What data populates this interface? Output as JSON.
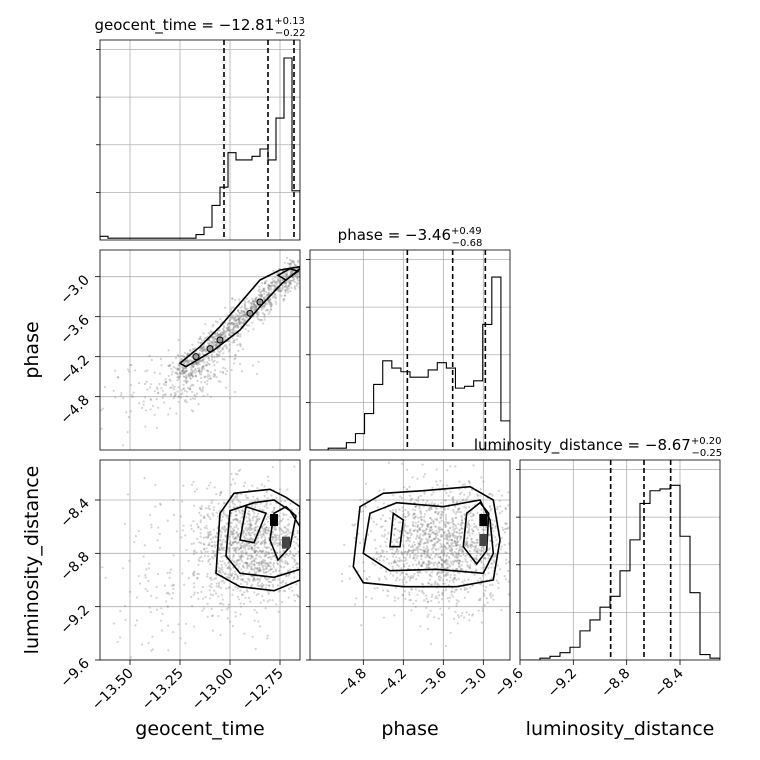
{
  "chart_data": {
    "type": "corner",
    "parameters": [
      "geocent_time",
      "phase",
      "luminosity_distance"
    ],
    "axis_labels": {
      "geocent_time": "geocent_time",
      "phase": "phase",
      "luminosity_distance": "luminosity_distance"
    },
    "titles": [
      {
        "param": "geocent_time",
        "text": "geocent_time = −12.81",
        "plus": "+0.13",
        "minus": "−0.22"
      },
      {
        "param": "phase",
        "text": "phase = −3.46",
        "plus": "+0.49",
        "minus": "−0.68"
      },
      {
        "param": "luminosity_distance",
        "text": "luminosity_distance = −8.67",
        "plus": "+0.20",
        "minus": "−0.25"
      }
    ],
    "ranges": {
      "geocent_time": [
        -13.65,
        -12.65
      ],
      "phase": [
        -5.6,
        -2.6
      ],
      "luminosity_distance": [
        -9.6,
        -8.1
      ]
    },
    "ticks": {
      "geocent_time": [
        {
          "v": -13.5,
          "label": "−13.50"
        },
        {
          "v": -13.25,
          "label": "−13.25"
        },
        {
          "v": -13.0,
          "label": "−13.00"
        },
        {
          "v": -12.75,
          "label": "−12.75"
        }
      ],
      "phase": [
        {
          "v": -4.8,
          "label": "−4.8"
        },
        {
          "v": -4.2,
          "label": "−4.2"
        },
        {
          "v": -3.6,
          "label": "−3.6"
        },
        {
          "v": -3.0,
          "label": "−3.0"
        }
      ],
      "luminosity_distance": [
        {
          "v": -9.6,
          "label": "−9.6"
        },
        {
          "v": -9.2,
          "label": "−9.2"
        },
        {
          "v": -8.8,
          "label": "−8.8"
        },
        {
          "v": -8.4,
          "label": "−8.4"
        }
      ]
    },
    "quantiles": {
      "geocent_time": [
        -13.03,
        -12.81,
        -12.68
      ],
      "phase": [
        -4.14,
        -3.46,
        -2.97
      ],
      "luminosity_distance": [
        -8.92,
        -8.67,
        -8.47
      ]
    },
    "histograms": {
      "geocent_time": [
        0.02,
        0.01,
        0.01,
        0.01,
        0.01,
        0.01,
        0.01,
        0.01,
        0.01,
        0.01,
        0.01,
        0.01,
        0.03,
        0.07,
        0.19,
        0.29,
        0.48,
        0.44,
        0.44,
        0.46,
        0.5,
        0.44,
        0.67,
        1.0,
        0.27
      ],
      "phase": [
        0.0,
        0.0,
        0.01,
        0.01,
        0.04,
        0.09,
        0.2,
        0.36,
        0.49,
        0.45,
        0.43,
        0.4,
        0.4,
        0.44,
        0.48,
        0.45,
        0.34,
        0.35,
        0.38,
        0.69,
        0.95,
        0.16
      ],
      "luminosity_distance": [
        0.0,
        0.0,
        0.01,
        0.02,
        0.04,
        0.07,
        0.16,
        0.22,
        0.29,
        0.35,
        0.49,
        0.66,
        0.86,
        0.93,
        0.94,
        0.96,
        0.68,
        0.37,
        0.03,
        0.01
      ]
    },
    "grid": true
  }
}
